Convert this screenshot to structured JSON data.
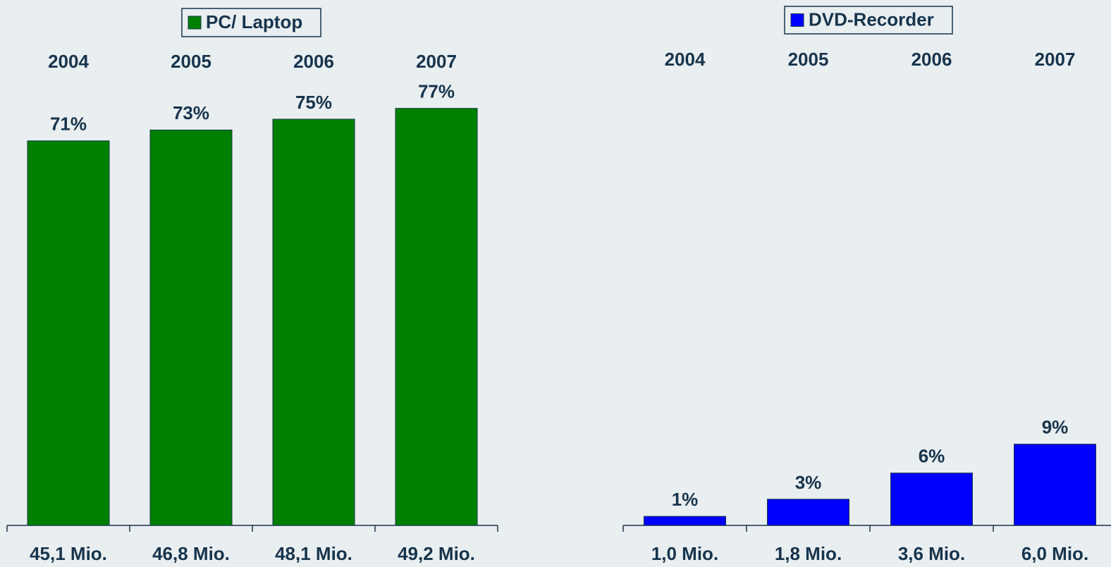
{
  "chart_data": [
    {
      "type": "bar",
      "legend": "PC/ Laptop",
      "color": "#008000",
      "categories": [
        "2004",
        "2005",
        "2006",
        "2007"
      ],
      "values": [
        71,
        73,
        75,
        77
      ],
      "value_labels": [
        "71%",
        "73%",
        "75%",
        "77%"
      ],
      "bottom_labels": [
        "45,1 Mio.",
        "46,8 Mio.",
        "48,1 Mio.",
        "49,2 Mio."
      ],
      "ylim": [
        0,
        80
      ]
    },
    {
      "type": "bar",
      "legend": "DVD-Recorder",
      "color": "#0000ff",
      "categories": [
        "2004",
        "2005",
        "2006",
        "2007"
      ],
      "values": [
        1.0,
        2.9,
        5.8,
        9.0
      ],
      "value_labels": [
        "1%",
        "3%",
        "6%",
        "9%"
      ],
      "bottom_labels": [
        "1,0 Mio.",
        "1,8 Mio.",
        "3,6 Mio.",
        "6,0 Mio."
      ],
      "ylim": [
        0,
        48
      ]
    }
  ]
}
